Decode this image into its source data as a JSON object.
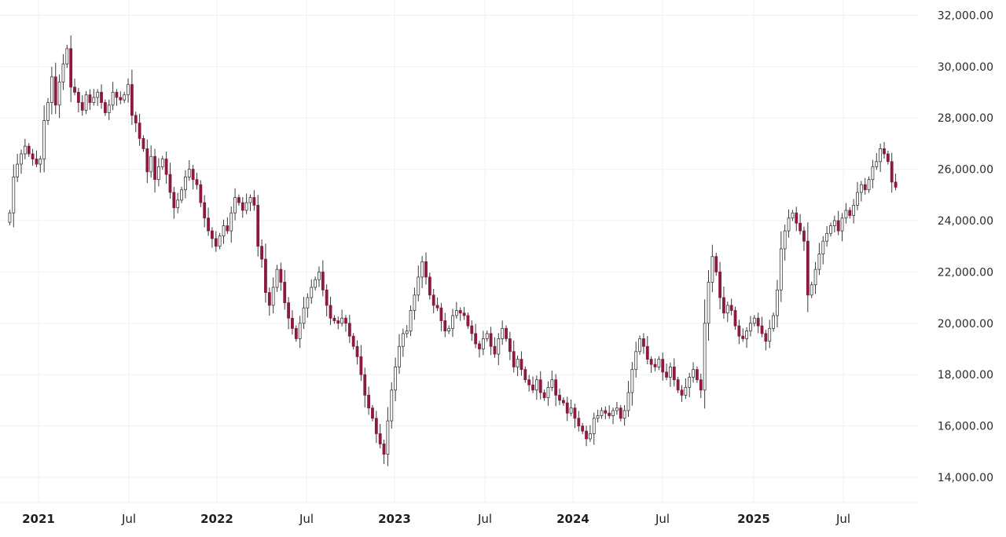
{
  "chart_data": {
    "type": "candlestick",
    "interval": "weekly",
    "ylim": [
      13000,
      32500
    ],
    "y_ticks": [
      {
        "value": 14000,
        "label": "14,000.00"
      },
      {
        "value": 16000,
        "label": "16,000.00"
      },
      {
        "value": 18000,
        "label": "18,000.00"
      },
      {
        "value": 20000,
        "label": "20,000.00"
      },
      {
        "value": 22000,
        "label": "22,000.00"
      },
      {
        "value": 24000,
        "label": "24,000.00"
      },
      {
        "value": 26000,
        "label": "26,000.00"
      },
      {
        "value": 28000,
        "label": "28,000.00"
      },
      {
        "value": 30000,
        "label": "30,000.00"
      },
      {
        "value": 32000,
        "label": "32,000.00"
      }
    ],
    "x_ticks": [
      {
        "label": "2021",
        "major": true
      },
      {
        "label": "Jul",
        "major": false
      },
      {
        "label": "2022",
        "major": true
      },
      {
        "label": "Jul",
        "major": false
      },
      {
        "label": "2023",
        "major": true
      },
      {
        "label": "Jul",
        "major": false
      },
      {
        "label": "2024",
        "major": true
      },
      {
        "label": "Jul",
        "major": false
      },
      {
        "label": "2025",
        "major": true
      },
      {
        "label": "Jul",
        "major": false
      }
    ],
    "grid": true,
    "y_axis_position": "right",
    "colors": {
      "up": "#ffffff",
      "up_border": "#3a3a3a",
      "down": "#8b1a3c",
      "wick": "#3a3a3a",
      "grid": "#f0f0f0"
    },
    "close": [
      24300,
      25700,
      26200,
      26600,
      26900,
      26600,
      26400,
      26200,
      26400,
      27900,
      28600,
      29600,
      28500,
      29400,
      30100,
      30700,
      29200,
      29000,
      28600,
      28300,
      28900,
      28600,
      28800,
      29000,
      28600,
      28200,
      28500,
      29000,
      28800,
      28700,
      28900,
      29300,
      28100,
      27800,
      27200,
      26800,
      25900,
      26500,
      25600,
      26100,
      26400,
      25800,
      25100,
      24500,
      24800,
      25200,
      25700,
      26000,
      25600,
      25400,
      24700,
      24100,
      23600,
      23300,
      23000,
      23400,
      23800,
      23600,
      24300,
      24900,
      24700,
      24400,
      24700,
      24900,
      24600,
      23000,
      22500,
      21200,
      20700,
      21400,
      22100,
      21600,
      20800,
      20200,
      19800,
      19400,
      20000,
      20600,
      21000,
      21400,
      21700,
      22000,
      21300,
      20700,
      20200,
      20100,
      20000,
      20200,
      20000,
      19500,
      19100,
      18700,
      18000,
      17200,
      16700,
      16300,
      15700,
      15300,
      14900,
      16200,
      17400,
      18300,
      19100,
      19600,
      19700,
      20500,
      21100,
      21800,
      22400,
      21800,
      21100,
      20700,
      20600,
      20100,
      19700,
      19800,
      20300,
      20500,
      20400,
      20300,
      19900,
      19600,
      19200,
      19000,
      19400,
      19600,
      19100,
      18800,
      19400,
      19800,
      19400,
      18900,
      18300,
      18600,
      18200,
      17800,
      17600,
      17400,
      17800,
      17300,
      17100,
      17500,
      17800,
      17200,
      17000,
      16900,
      16500,
      16700,
      16300,
      16000,
      15800,
      15500,
      15700,
      16300,
      16400,
      16600,
      16500,
      16400,
      16600,
      16700,
      16300,
      16600,
      17300,
      18200,
      18900,
      19400,
      19100,
      18600,
      18400,
      18300,
      18600,
      18100,
      17900,
      18300,
      17800,
      17400,
      17200,
      17500,
      17900,
      18200,
      17800,
      17400,
      20000,
      21600,
      22600,
      22000,
      21000,
      20400,
      20700,
      20500,
      19900,
      19500,
      19400,
      19700,
      20000,
      20200,
      19900,
      19600,
      19300,
      19800,
      20300,
      21300,
      22900,
      23600,
      24100,
      24300,
      23900,
      23600,
      23200,
      21100,
      21500,
      22100,
      22700,
      23200,
      23500,
      23800,
      24000,
      23600,
      24100,
      24400,
      24200,
      24600,
      25100,
      25400,
      25200,
      25600,
      26100,
      26300,
      26800,
      26600,
      26300,
      25500,
      25300
    ]
  }
}
